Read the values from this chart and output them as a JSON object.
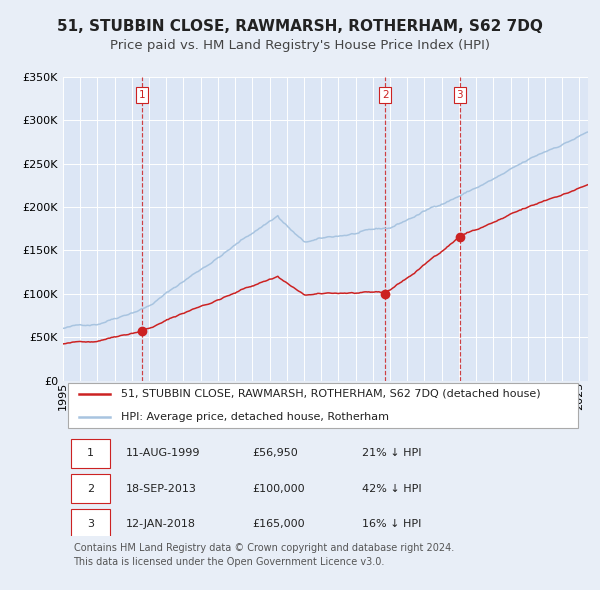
{
  "title": "51, STUBBIN CLOSE, RAWMARSH, ROTHERHAM, S62 7DQ",
  "subtitle": "Price paid vs. HM Land Registry's House Price Index (HPI)",
  "bg_color": "#e8eef7",
  "plot_bg_color": "#dce6f5",
  "grid_color": "#ffffff",
  "hpi_color": "#a8c4e0",
  "property_color": "#cc2222",
  "sale_marker_color": "#cc2222",
  "vline_color": "#cc2222",
  "ylim": [
    0,
    350000
  ],
  "yticks": [
    0,
    50000,
    100000,
    150000,
    200000,
    250000,
    300000,
    350000
  ],
  "xmin": 1995.0,
  "xmax": 2025.5,
  "sale_dates": [
    1999.61,
    2013.72,
    2018.04
  ],
  "sale_prices": [
    56950,
    100000,
    165000
  ],
  "sale_labels": [
    "1",
    "2",
    "3"
  ],
  "legend_property_label": "51, STUBBIN CLOSE, RAWMARSH, ROTHERHAM, S62 7DQ (detached house)",
  "legend_hpi_label": "HPI: Average price, detached house, Rotherham",
  "table_rows": [
    [
      "1",
      "11-AUG-1999",
      "£56,950",
      "21% ↓ HPI"
    ],
    [
      "2",
      "18-SEP-2013",
      "£100,000",
      "42% ↓ HPI"
    ],
    [
      "3",
      "12-JAN-2018",
      "£165,000",
      "16% ↓ HPI"
    ]
  ],
  "footnote": "Contains HM Land Registry data © Crown copyright and database right 2024.\nThis data is licensed under the Open Government Licence v3.0.",
  "title_fontsize": 11,
  "subtitle_fontsize": 9.5,
  "tick_fontsize": 8,
  "legend_fontsize": 8,
  "table_fontsize": 8,
  "footnote_fontsize": 7
}
